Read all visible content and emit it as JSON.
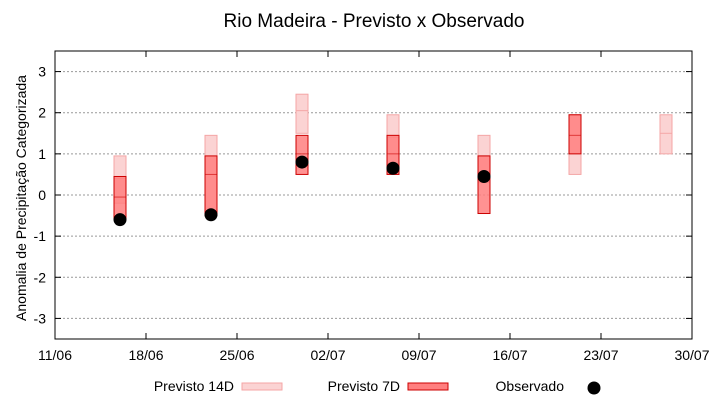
{
  "chart_data": {
    "type": "box",
    "title": "Rio Madeira - Previsto x Observado",
    "ylabel": "Anomalia de Precipitação Categorizada",
    "xlabel": "",
    "ylim": [
      -3.5,
      3.5
    ],
    "yticks": [
      -3,
      -2,
      -1,
      0,
      1,
      2,
      3
    ],
    "xlim": [
      "2018-06-11",
      "2018-07-30"
    ],
    "xticks": [
      {
        "date": "2018-06-11",
        "label": "11/06"
      },
      {
        "date": "2018-06-18",
        "label": "18/06"
      },
      {
        "date": "2018-06-25",
        "label": "25/06"
      },
      {
        "date": "2018-07-02",
        "label": "02/07"
      },
      {
        "date": "2018-07-09",
        "label": "09/07"
      },
      {
        "date": "2018-07-16",
        "label": "16/07"
      },
      {
        "date": "2018-07-23",
        "label": "23/07"
      },
      {
        "date": "2018-07-30",
        "label": "30/07"
      }
    ],
    "grid": true,
    "legend_position": "bottom",
    "series": [
      {
        "name": "Previsto 14D",
        "color": "#f4a6a6",
        "fill": "#fbd3d3",
        "values": [
          {
            "date": "2018-06-16",
            "low": -0.2,
            "median": 0.4,
            "high": 0.95
          },
          {
            "date": "2018-06-23",
            "low": -0.4,
            "median": 0.5,
            "high": 1.45
          },
          {
            "date": "2018-06-30",
            "low": 1.5,
            "median": 2.05,
            "high": 2.45
          },
          {
            "date": "2018-07-07",
            "low": 0.5,
            "median": 1.4,
            "high": 1.95
          },
          {
            "date": "2018-07-14",
            "low": 0.3,
            "median": 0.95,
            "high": 1.45
          },
          {
            "date": "2018-07-21",
            "low": 0.5,
            "median": 1.0,
            "high": 1.95
          },
          {
            "date": "2018-07-28",
            "low": 1.0,
            "median": 1.5,
            "high": 1.95
          }
        ]
      },
      {
        "name": "Previsto 7D",
        "color": "#cc0000",
        "fill": "#ff7f7f",
        "values": [
          {
            "date": "2018-06-16",
            "low": -0.6,
            "median": -0.05,
            "high": 0.45
          },
          {
            "date": "2018-06-23",
            "low": -0.5,
            "median": 0.5,
            "high": 0.95
          },
          {
            "date": "2018-06-30",
            "low": 0.5,
            "median": 1.0,
            "high": 1.45
          },
          {
            "date": "2018-07-07",
            "low": 0.5,
            "median": 1.0,
            "high": 1.45
          },
          {
            "date": "2018-07-14",
            "low": -0.45,
            "median": 0.5,
            "high": 0.95
          },
          {
            "date": "2018-07-21",
            "low": 1.0,
            "median": 1.45,
            "high": 1.95
          }
        ]
      },
      {
        "name": "Observado",
        "color": "#000000",
        "values": [
          {
            "date": "2018-06-16",
            "y": -0.6
          },
          {
            "date": "2018-06-23",
            "y": -0.48
          },
          {
            "date": "2018-06-30",
            "y": 0.8
          },
          {
            "date": "2018-07-07",
            "y": 0.65
          },
          {
            "date": "2018-07-14",
            "y": 0.45
          }
        ]
      }
    ]
  }
}
